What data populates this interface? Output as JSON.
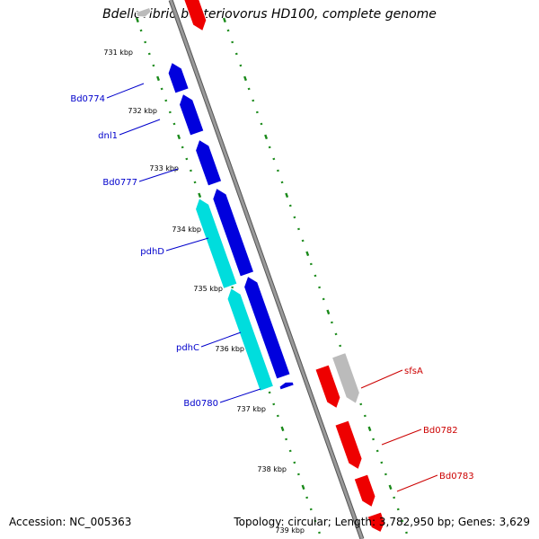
{
  "title": "Bdellovibrio bacteriovorus HD100, complete genome",
  "footer": {
    "accession": "Accession: NC_005363",
    "summary": "Topology: circular; Length: 3,782,950 bp; Genes: 3,629"
  },
  "ruler": {
    "ticks": [
      "731 kbp",
      "732 kbp",
      "733 kbp",
      "734 kbp",
      "735 kbp",
      "736 kbp",
      "737 kbp",
      "738 kbp",
      "739 kbp"
    ]
  },
  "gene_labels": {
    "reverse": [
      "Bd0774",
      "dnl1",
      "Bd0777",
      "pdhD",
      "pdhC",
      "Bd0780"
    ],
    "forward": [
      "sfsA",
      "Bd0782",
      "Bd0783"
    ]
  },
  "colors": {
    "reverse_strand": "#0000dd",
    "forward_strand": "#ee0000",
    "pdh_genes": "#00dddd",
    "other_gene": "#bbbbbb",
    "backbone": "#888888",
    "tick_marks": "#1a8a1a",
    "reverse_label": "#0000cc",
    "forward_label": "#cc0000"
  }
}
